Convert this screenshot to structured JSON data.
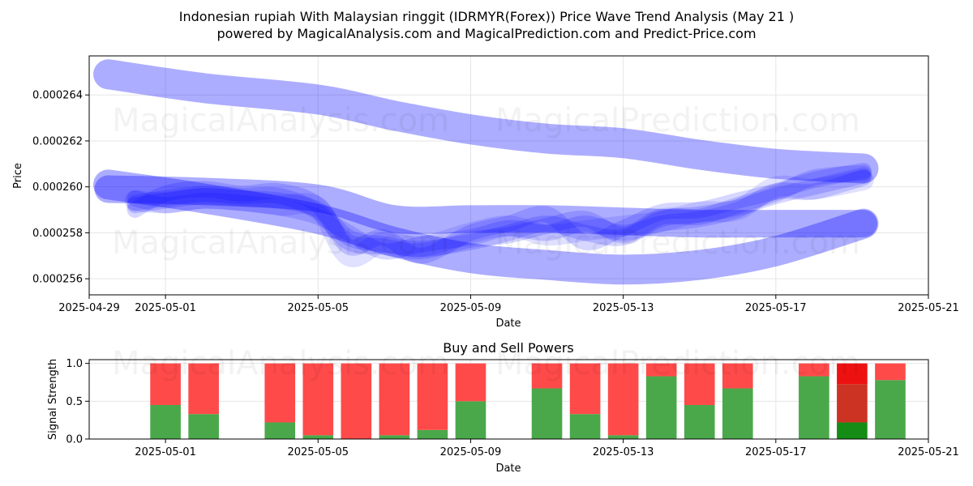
{
  "title_line1": "Indonesian rupiah With Malaysian ringgit (IDRMYR(Forex)) Price Wave Trend Analysis (May 21 )",
  "title_line2": "powered by MagicalAnalysis.com and MagicalPrediction.com and Predict-Price.com",
  "watermarks": [
    "MagicalAnalysis.com",
    "MagicalPrediction.com"
  ],
  "chart_data": [
    {
      "type": "area",
      "title": "",
      "xlabel": "Date",
      "ylabel": "Price",
      "xlim_days": [
        -0.5,
        21.5
      ],
      "ylim": [
        0.0002553,
        0.0002657
      ],
      "x_ticks": [
        {
          "day": -0.5,
          "label": "2025-04-29"
        },
        {
          "day": 1.5,
          "label": "2025-05-01"
        },
        {
          "day": 5.5,
          "label": "2025-05-05"
        },
        {
          "day": 9.5,
          "label": "2025-05-09"
        },
        {
          "day": 13.5,
          "label": "2025-05-13"
        },
        {
          "day": 17.5,
          "label": "2025-05-17"
        },
        {
          "day": 21.5,
          "label": "2025-05-21"
        }
      ],
      "y_ticks": [
        {
          "value": 0.000256,
          "label": "0.000256"
        },
        {
          "value": 0.000258,
          "label": "0.000258"
        },
        {
          "value": 0.00026,
          "label": "0.000260"
        },
        {
          "value": 0.000262,
          "label": "0.000262"
        },
        {
          "value": 0.000264,
          "label": "0.000264"
        }
      ],
      "grid": true,
      "color": "#0000ff",
      "series": [
        {
          "name": "upper-wave",
          "alpha": 0.32,
          "width": 1.3e-06,
          "x": [
            0,
            2.5,
            5.5,
            7.5,
            9.5,
            11.5,
            13.5,
            15.5,
            17.5,
            19.8
          ],
          "values": [
            0.0002649,
            0.0002643,
            0.0002638,
            0.0002631,
            0.0002625,
            0.0002621,
            0.0002619,
            0.0002614,
            0.000261,
            0.0002608
          ]
        },
        {
          "name": "lower-wave",
          "alpha": 0.32,
          "width": 1.3e-06,
          "x": [
            0,
            2.5,
            5.5,
            7.5,
            9.5,
            11.5,
            13.5,
            15.5,
            17.5,
            19.8
          ],
          "values": [
            0.0002601,
            0.0002595,
            0.0002586,
            0.0002576,
            0.0002569,
            0.0002566,
            0.0002564,
            0.0002566,
            0.0002572,
            0.0002584
          ]
        },
        {
          "name": "mid-wave",
          "alpha": 0.32,
          "width": 1.2e-06,
          "x": [
            0,
            2.5,
            5.5,
            7.5,
            9.5,
            11.5,
            13.5,
            15.5,
            17.5,
            19.8
          ],
          "values": [
            0.0002599,
            0.0002598,
            0.0002595,
            0.0002586,
            0.0002586,
            0.0002586,
            0.0002585,
            0.0002584,
            0.0002584,
            0.0002584
          ]
        },
        {
          "name": "band-a",
          "alpha": 0.16,
          "width": 7e-07,
          "x": [
            0.7,
            1.5,
            2.5,
            3.5,
            4.5,
            5.5,
            6.3,
            7.2,
            8.2,
            9.5,
            10.5,
            11.5,
            12.5,
            13.5,
            14.5,
            15.5,
            16.5,
            17.5,
            18.5,
            19.8
          ],
          "values": [
            0.0002592,
            0.0002594,
            0.0002596,
            0.0002595,
            0.0002594,
            0.000259,
            0.0002578,
            0.0002575,
            0.0002573,
            0.0002576,
            0.000258,
            0.0002584,
            0.000258,
            0.0002578,
            0.0002586,
            0.0002588,
            0.0002591,
            0.0002596,
            0.00026,
            0.0002605
          ]
        },
        {
          "name": "band-b",
          "alpha": 0.16,
          "width": 7e-07,
          "x": [
            0.7,
            1.5,
            2.5,
            3.5,
            4.5,
            5.5,
            6.3,
            7.2,
            8.2,
            9.5,
            10.5,
            11.5,
            12.5,
            13.5,
            14.5,
            15.5,
            16.5,
            17.5,
            18.5,
            19.8
          ],
          "values": [
            0.000259,
            0.0002597,
            0.0002599,
            0.0002597,
            0.0002598,
            0.0002592,
            0.0002574,
            0.0002578,
            0.000257,
            0.000258,
            0.0002584,
            0.0002588,
            0.0002576,
            0.0002582,
            0.0002589,
            0.000259,
            0.0002594,
            0.0002598,
            0.0002603,
            0.0002607
          ]
        },
        {
          "name": "band-c",
          "alpha": 0.16,
          "width": 7e-07,
          "x": [
            0.7,
            1.5,
            2.5,
            3.5,
            4.5,
            5.5,
            6.3,
            7.2,
            8.2,
            9.5,
            10.5,
            11.5,
            12.5,
            13.5,
            14.5,
            15.5,
            16.5,
            17.5,
            18.5,
            19.8
          ],
          "values": [
            0.0002595,
            0.0002592,
            0.0002594,
            0.0002593,
            0.0002591,
            0.0002587,
            0.000258,
            0.0002572,
            0.0002575,
            0.0002578,
            0.0002582,
            0.000258,
            0.0002584,
            0.000258,
            0.0002584,
            0.0002586,
            0.000259,
            0.0002598,
            0.0002598,
            0.0002604
          ]
        },
        {
          "name": "band-d",
          "alpha": 0.16,
          "width": 7e-07,
          "x": [
            0.7,
            1.5,
            2.5,
            3.5,
            4.5,
            5.5,
            6.3,
            7.2,
            8.2,
            9.5,
            10.5,
            11.5,
            12.5,
            13.5,
            14.5,
            15.5,
            16.5,
            17.5,
            18.5,
            19.8
          ],
          "values": [
            0.0002593,
            0.0002595,
            0.0002597,
            0.0002596,
            0.0002596,
            0.0002589,
            0.0002576,
            0.0002574,
            0.0002572,
            0.0002577,
            0.0002579,
            0.0002583,
            0.0002586,
            0.0002579,
            0.0002587,
            0.0002587,
            0.0002592,
            0.0002597,
            0.0002604,
            0.0002606
          ]
        },
        {
          "name": "band-e",
          "alpha": 0.12,
          "width": 9e-07,
          "x": [
            0.7,
            1.5,
            2.5,
            3.5,
            4.5,
            5.5,
            6.3,
            7.2,
            8.2,
            9.5,
            10.5,
            11.5,
            12.5,
            13.5,
            14.5,
            15.5,
            16.5,
            17.5,
            18.5,
            19.8
          ],
          "values": [
            0.0002594,
            0.0002593,
            0.0002595,
            0.0002594,
            0.0002592,
            0.0002591,
            0.000257,
            0.0002576,
            0.0002574,
            0.000258,
            0.0002583,
            0.0002579,
            0.0002581,
            0.0002583,
            0.0002585,
            0.0002589,
            0.000259,
            0.00026,
            0.0002599,
            0.0002603
          ]
        }
      ]
    },
    {
      "type": "bar",
      "title": "Buy and Sell Powers",
      "xlabel": "Date",
      "ylabel": "Signal Strength",
      "xlim_days": [
        -0.5,
        21.5
      ],
      "ylim": [
        0,
        1.05
      ],
      "x_ticks": [
        {
          "day": 1.5,
          "label": "2025-05-01"
        },
        {
          "day": 5.5,
          "label": "2025-05-05"
        },
        {
          "day": 9.5,
          "label": "2025-05-09"
        },
        {
          "day": 13.5,
          "label": "2025-05-13"
        },
        {
          "day": 17.5,
          "label": "2025-05-17"
        },
        {
          "day": 21.5,
          "label": "2025-05-21"
        }
      ],
      "y_ticks": [
        {
          "value": 0,
          "label": "0.0"
        },
        {
          "value": 0.5,
          "label": "0.5"
        },
        {
          "value": 1,
          "label": "1.0"
        }
      ],
      "grid": true,
      "series_names": [
        "Buy",
        "Sell"
      ],
      "bars": [
        {
          "day": 1.5,
          "buy": 0.45,
          "sell": 0.55
        },
        {
          "day": 2.5,
          "buy": 0.33,
          "sell": 0.67
        },
        {
          "day": 4.5,
          "buy": 0.22,
          "sell": 0.78
        },
        {
          "day": 5.5,
          "buy": 0.05,
          "sell": 0.95
        },
        {
          "day": 6.5,
          "buy": 0.0,
          "sell": 1.0
        },
        {
          "day": 7.5,
          "buy": 0.05,
          "sell": 0.95
        },
        {
          "day": 8.5,
          "buy": 0.12,
          "sell": 0.88
        },
        {
          "day": 9.5,
          "buy": 0.5,
          "sell": 0.5
        },
        {
          "day": 11.5,
          "buy": 0.67,
          "sell": 0.33
        },
        {
          "day": 12.5,
          "buy": 0.33,
          "sell": 0.67
        },
        {
          "day": 13.5,
          "buy": 0.05,
          "sell": 0.95
        },
        {
          "day": 14.5,
          "buy": 0.83,
          "sell": 0.17
        },
        {
          "day": 15.5,
          "buy": 0.45,
          "sell": 0.55
        },
        {
          "day": 16.5,
          "buy": 0.67,
          "sell": 0.33
        },
        {
          "day": 18.5,
          "buy": 0.83,
          "sell": 0.17
        },
        {
          "day": 19.5,
          "buy": 0.22,
          "sell": 0.78,
          "highlight": true
        },
        {
          "day": 20.5,
          "buy": 0.78,
          "sell": 0.22
        }
      ],
      "colors": {
        "buy": "#4aa84a",
        "sell": "#ff4a4a",
        "buy_highlight": "#158c15",
        "sell_highlight_lower": "#cc3322",
        "sell_highlight_upper": "#ee1111",
        "grid": "#e5e5e5",
        "axis": "#000000"
      }
    }
  ]
}
